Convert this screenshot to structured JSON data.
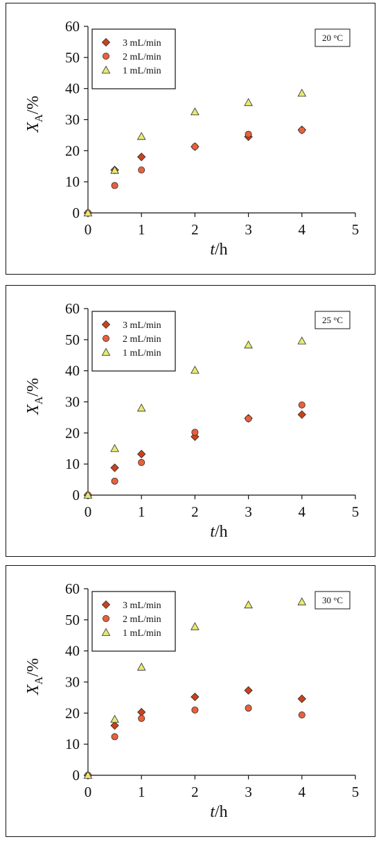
{
  "chart_data": [
    {
      "type": "scatter",
      "annotation": "20 °C",
      "xlabel_italic": "t",
      "xlabel_unit": "/h",
      "ylabel_italic": "X",
      "ylabel_sub": "A",
      "ylabel_unit": "/%",
      "xlim": [
        0,
        5
      ],
      "ylim": [
        0,
        60
      ],
      "xticks": [
        "0",
        "1",
        "2",
        "3",
        "4",
        "5"
      ],
      "yticks": [
        "0",
        "10",
        "20",
        "30",
        "40",
        "50",
        "60"
      ],
      "legend_position": "top-left",
      "series": [
        {
          "name": "3 mL/min",
          "marker": "diamond",
          "color": "#c9421c",
          "x": [
            0,
            0.5,
            1,
            2,
            3,
            4
          ],
          "y": [
            0,
            13.8,
            18,
            21.3,
            24.5,
            26.7
          ]
        },
        {
          "name": "2 mL/min",
          "marker": "circle",
          "color": "#e8613c",
          "x": [
            0,
            0.5,
            1,
            2,
            3,
            4
          ],
          "y": [
            0,
            8.8,
            13.8,
            21.3,
            25.3,
            26.6
          ]
        },
        {
          "name": "1 mL/min",
          "marker": "triangle",
          "color": "#e6ea70",
          "x": [
            0,
            0.5,
            1,
            2,
            3,
            4
          ],
          "y": [
            0,
            13.7,
            24.6,
            32.5,
            35.5,
            38.5
          ]
        }
      ]
    },
    {
      "type": "scatter",
      "annotation": "25 °C",
      "xlabel_italic": "t",
      "xlabel_unit": "/h",
      "ylabel_italic": "X",
      "ylabel_sub": "A",
      "ylabel_unit": "/%",
      "xlim": [
        0,
        5
      ],
      "ylim": [
        0,
        60
      ],
      "xticks": [
        "0",
        "1",
        "2",
        "3",
        "4",
        "5"
      ],
      "yticks": [
        "0",
        "10",
        "20",
        "30",
        "40",
        "50",
        "60"
      ],
      "legend_position": "top-left",
      "series": [
        {
          "name": "3 mL/min",
          "marker": "diamond",
          "color": "#c9421c",
          "x": [
            0,
            0.5,
            1,
            2,
            3,
            4
          ],
          "y": [
            0,
            8.8,
            13.2,
            18.8,
            24.7,
            25.9
          ]
        },
        {
          "name": "2 mL/min",
          "marker": "circle",
          "color": "#e8613c",
          "x": [
            0,
            0.5,
            1,
            2,
            3,
            4
          ],
          "y": [
            0,
            4.5,
            10.5,
            20.2,
            24.6,
            29
          ]
        },
        {
          "name": "1 mL/min",
          "marker": "triangle",
          "color": "#e6ea70",
          "x": [
            0,
            0.5,
            1,
            2,
            3,
            4
          ],
          "y": [
            0,
            15,
            28,
            40.2,
            48.3,
            49.6
          ]
        }
      ]
    },
    {
      "type": "scatter",
      "annotation": "30 °C",
      "xlabel_italic": "t",
      "xlabel_unit": "/h",
      "ylabel_italic": "X",
      "ylabel_sub": "A",
      "ylabel_unit": "/%",
      "xlim": [
        0,
        5
      ],
      "ylim": [
        0,
        60
      ],
      "xticks": [
        "0",
        "1",
        "2",
        "3",
        "4",
        "5"
      ],
      "yticks": [
        "0",
        "10",
        "20",
        "30",
        "40",
        "50",
        "60"
      ],
      "legend_position": "top-left",
      "series": [
        {
          "name": "3 mL/min",
          "marker": "diamond",
          "color": "#c9421c",
          "x": [
            0,
            0.5,
            1,
            2,
            3,
            4
          ],
          "y": [
            0,
            16,
            20.3,
            25.2,
            27.3,
            24.6
          ]
        },
        {
          "name": "2 mL/min",
          "marker": "circle",
          "color": "#e8613c",
          "x": [
            0,
            0.5,
            1,
            2,
            3,
            4
          ],
          "y": [
            0,
            12.4,
            18.3,
            21,
            21.6,
            19.4
          ]
        },
        {
          "name": "1 mL/min",
          "marker": "triangle",
          "color": "#e6ea70",
          "x": [
            0,
            0.5,
            1,
            2,
            3,
            4
          ],
          "y": [
            0,
            18,
            34.8,
            47.8,
            54.8,
            55.8
          ]
        }
      ]
    }
  ]
}
